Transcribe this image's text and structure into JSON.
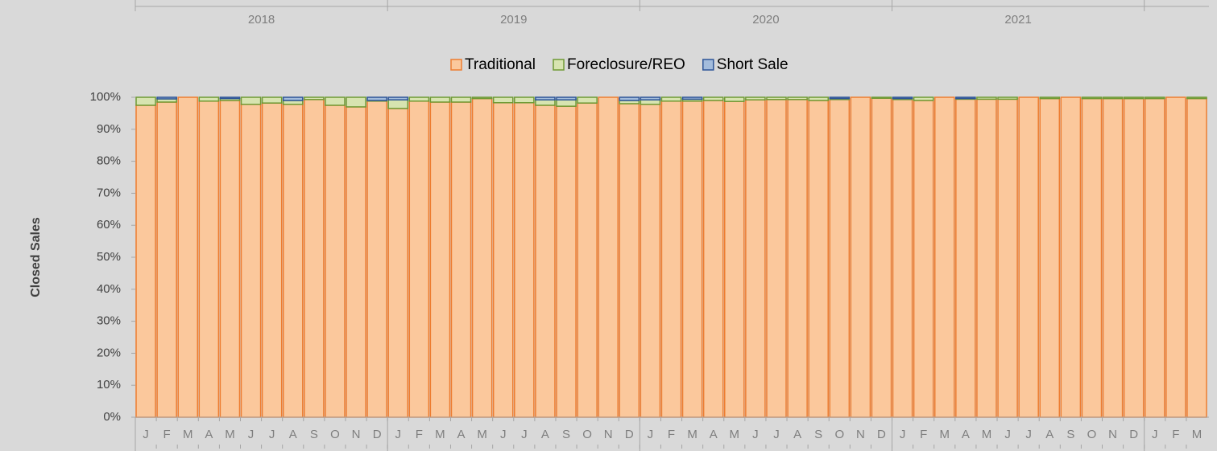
{
  "chart_data": {
    "type": "stacked_bar",
    "y_label": "Closed Sales",
    "year_labels": [
      "2018",
      "2019",
      "2020",
      "2021"
    ],
    "categories": [
      "J",
      "F",
      "M",
      "A",
      "M",
      "J",
      "J",
      "A",
      "S",
      "O",
      "N",
      "D",
      "J",
      "F",
      "M",
      "A",
      "M",
      "J",
      "J",
      "A",
      "S",
      "O",
      "N",
      "D",
      "J",
      "F",
      "M",
      "A",
      "M",
      "J",
      "J",
      "A",
      "S",
      "O",
      "N",
      "D",
      "J",
      "F",
      "M",
      "A",
      "M",
      "J",
      "J",
      "A",
      "S",
      "O",
      "N",
      "D",
      "J",
      "F",
      "M"
    ],
    "series": [
      {
        "name": "Traditional",
        "color": "#fbc89c",
        "edge_color": "#ed7d31",
        "values": [
          97.5,
          98.5,
          100,
          98.8,
          99,
          97.8,
          98.2,
          97.8,
          99.3,
          97.5,
          97,
          98.8,
          96.5,
          98.8,
          98.5,
          98.5,
          99.6,
          98.3,
          98.3,
          97.5,
          97.2,
          98.2,
          100,
          98,
          97.8,
          98.8,
          98.8,
          99,
          98.7,
          99.2,
          99.3,
          99.3,
          99,
          99.3,
          100,
          99.7,
          99.3,
          99,
          100,
          99.4,
          99.4,
          99.4,
          100,
          99.6,
          100,
          99.6,
          99.6,
          99.6,
          99.6,
          100,
          99.6
        ]
      },
      {
        "name": "Foreclosure/REO",
        "color": "#d7e4b0",
        "edge_color": "#6f9a35",
        "values": [
          2.5,
          1,
          0,
          1.2,
          0.6,
          2.2,
          1.8,
          1.2,
          0.7,
          2.5,
          3,
          0.2,
          2.7,
          1.2,
          1.5,
          1.5,
          0.4,
          1.7,
          1.7,
          1.7,
          2,
          1.8,
          0,
          1,
          1.4,
          1.2,
          0.6,
          1,
          1.3,
          0.8,
          0.7,
          0.7,
          1,
          0.3,
          0,
          0.3,
          0.3,
          1,
          0,
          0.2,
          0.6,
          0.6,
          0,
          0.4,
          0,
          0.4,
          0.4,
          0.4,
          0.4,
          0,
          0.4
        ]
      },
      {
        "name": "Short Sale",
        "color": "#a3bcdc",
        "edge_color": "#2e5597",
        "values": [
          0,
          0.5,
          0,
          0,
          0.4,
          0,
          0,
          1,
          0,
          0,
          0,
          1,
          0.8,
          0,
          0,
          0,
          0,
          0,
          0,
          0.8,
          0.8,
          0,
          0,
          1,
          0.8,
          0,
          0.6,
          0,
          0,
          0,
          0,
          0,
          0,
          0.4,
          0,
          0,
          0.4,
          0,
          0,
          0.4,
          0,
          0,
          0,
          0,
          0,
          0,
          0,
          0,
          0,
          0,
          0
        ]
      }
    ],
    "ylim": [
      0,
      100
    ],
    "yticks": [
      {
        "value": 0,
        "label": "0%"
      },
      {
        "value": 10,
        "label": "10%"
      },
      {
        "value": 20,
        "label": "20%"
      },
      {
        "value": 30,
        "label": "30%"
      },
      {
        "value": 40,
        "label": "40%"
      },
      {
        "value": 50,
        "label": "50%"
      },
      {
        "value": 60,
        "label": "60%"
      },
      {
        "value": 70,
        "label": "70%"
      },
      {
        "value": 80,
        "label": "80%"
      },
      {
        "value": 90,
        "label": "90%"
      },
      {
        "value": 100,
        "label": "100%"
      }
    ],
    "legend": "top",
    "grid": false
  }
}
